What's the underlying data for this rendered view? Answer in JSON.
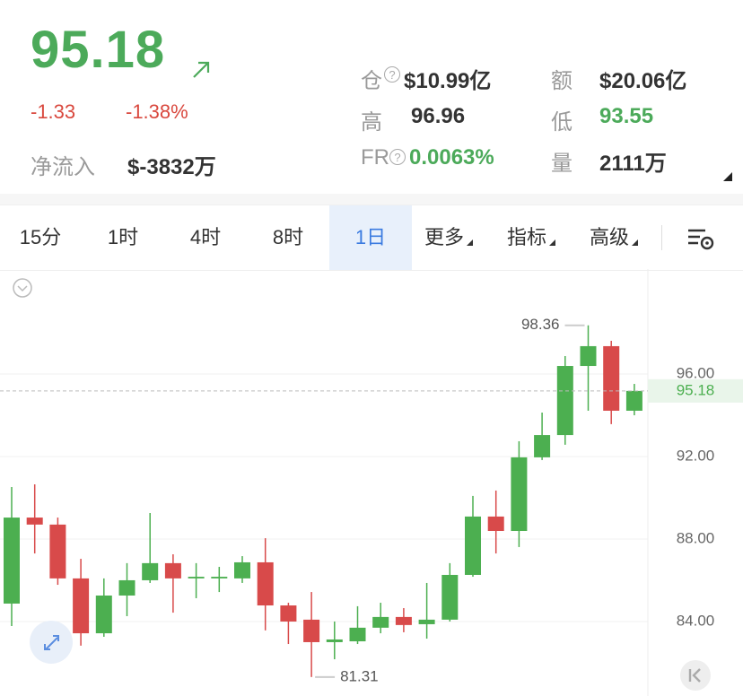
{
  "header": {
    "price": "95.18",
    "change": "-1.33",
    "change_pct": "-1.38%",
    "net_inflow_label": "净流入",
    "net_inflow": "$-3832万",
    "stats": [
      {
        "label": "仓",
        "value": "$10.99亿"
      },
      {
        "label": "额",
        "value": "$20.06亿"
      },
      {
        "label": "高",
        "value": "96.96"
      },
      {
        "label": "低",
        "value": "93.55"
      },
      {
        "label": "FR",
        "value": "0.0063%"
      },
      {
        "label": "量",
        "value": "2111万"
      }
    ]
  },
  "tabs": [
    {
      "label": "15分",
      "dropdown": false
    },
    {
      "label": "1时",
      "dropdown": false
    },
    {
      "label": "4时",
      "dropdown": false
    },
    {
      "label": "8时",
      "dropdown": false
    },
    {
      "label": "1日",
      "dropdown": false
    },
    {
      "label": "更多",
      "dropdown": true
    },
    {
      "label": "指标",
      "dropdown": true
    },
    {
      "label": "高级",
      "dropdown": true
    }
  ],
  "active_tab": 4,
  "chart_data": {
    "type": "candlestick",
    "up_color": "#4caf50",
    "down_color": "#d84a4a",
    "open": [
      84.87,
      89.04,
      88.7,
      86.09,
      83.43,
      85.26,
      86.0,
      86.83,
      86.09,
      86.09,
      86.09,
      86.87,
      84.78,
      84.09,
      83.0,
      83.04,
      83.7,
      84.22,
      83.87,
      84.09,
      86.26,
      89.09,
      88.39,
      91.96,
      93.04,
      96.39,
      97.35,
      94.22
    ],
    "high": [
      90.52,
      90.65,
      89.04,
      87.04,
      86.09,
      86.83,
      89.26,
      87.26,
      86.83,
      86.65,
      87.17,
      88.04,
      84.91,
      85.43,
      84.0,
      84.74,
      84.91,
      84.65,
      85.87,
      86.83,
      90.09,
      90.35,
      92.74,
      94.13,
      96.87,
      98.36,
      97.61,
      95.52
    ],
    "low": [
      83.78,
      87.3,
      85.78,
      82.83,
      83.26,
      84.26,
      85.87,
      84.43,
      85.13,
      85.43,
      85.87,
      83.57,
      82.91,
      81.31,
      82.17,
      82.91,
      83.43,
      83.48,
      83.17,
      84.0,
      86.17,
      87.3,
      87.61,
      91.83,
      92.57,
      94.22,
      93.57,
      94.0
    ],
    "close": [
      89.04,
      88.7,
      86.09,
      83.43,
      85.26,
      86.0,
      86.83,
      86.09,
      86.17,
      86.17,
      86.87,
      84.78,
      84.0,
      83.0,
      83.13,
      83.7,
      84.22,
      83.83,
      84.09,
      86.26,
      89.09,
      88.39,
      91.96,
      93.04,
      96.39,
      97.35,
      94.22,
      95.18
    ],
    "last_price": 95.18,
    "ylim": [
      80.65,
      100.87
    ],
    "yticks": [
      {
        "value": 84,
        "label": "84.00"
      },
      {
        "value": 88,
        "label": "88.00"
      },
      {
        "value": 92,
        "label": "92.00"
      },
      {
        "value": 96,
        "label": "96.00"
      }
    ],
    "grid": true
  }
}
